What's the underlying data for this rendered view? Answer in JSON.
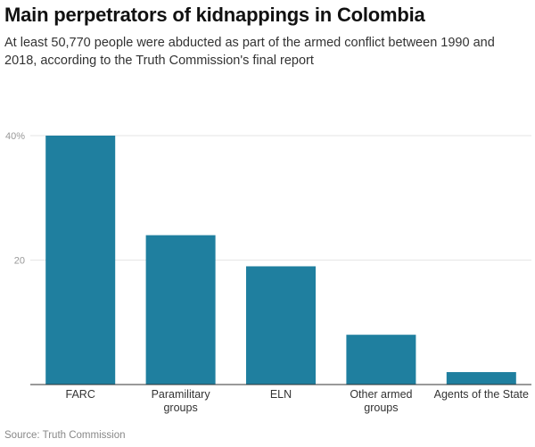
{
  "header": {
    "title": "Main perpetrators of kidnappings in Colombia",
    "subtitle": "At least 50,770 people were abducted as part of the armed conflict between 1990 and 2018, according to the Truth Commission's final report"
  },
  "footer": {
    "source": "Source: Truth Commission"
  },
  "colors": {
    "bar": "#1f7f9f",
    "grid": "#e6e6e6",
    "axis": "#333333"
  },
  "chart_data": {
    "type": "bar",
    "title": "Main perpetrators of kidnappings in Colombia",
    "xlabel": "",
    "ylabel": "",
    "ylim": [
      0,
      40
    ],
    "grid": true,
    "yticks": [
      {
        "value": 20,
        "label": "20"
      },
      {
        "value": 40,
        "label": "40%"
      }
    ],
    "categories": [
      [
        "FARC"
      ],
      [
        "Paramilitary",
        "groups"
      ],
      [
        "ELN"
      ],
      [
        "Other armed",
        "groups"
      ],
      [
        "Agents of the State"
      ]
    ],
    "values": [
      40,
      24,
      19,
      8,
      2
    ]
  }
}
